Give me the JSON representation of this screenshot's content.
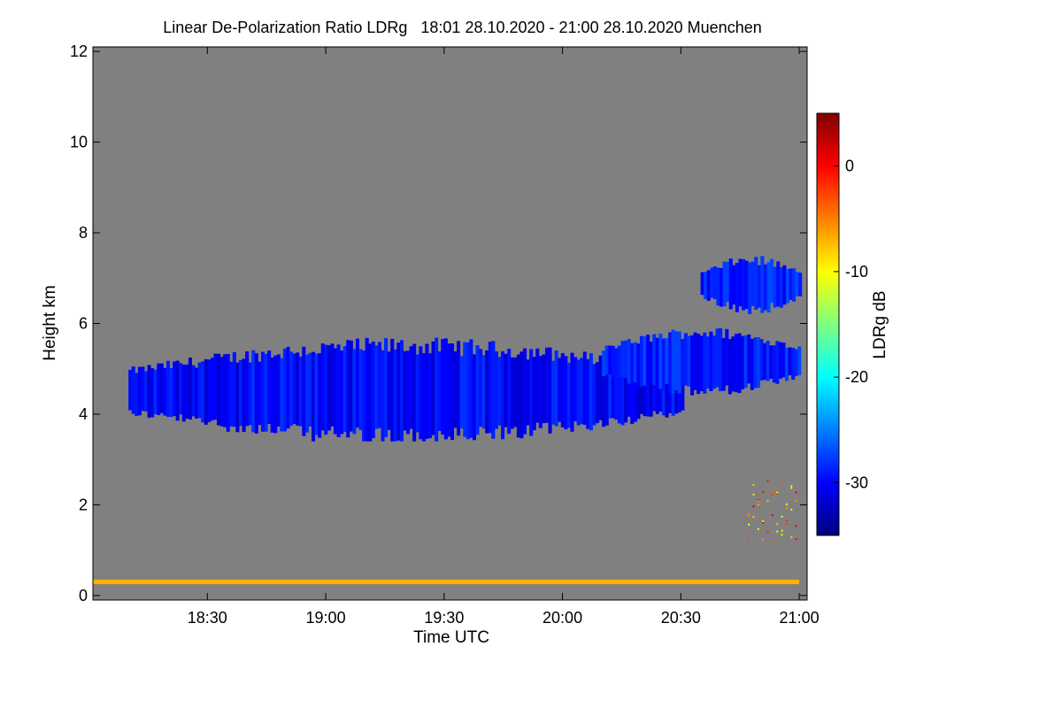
{
  "title": "Linear De-Polarization Ratio LDRg   18:01 28.10.2020 - 21:00 28.10.2020 Muenchen",
  "colors": {
    "background": "#ffffff",
    "plot_background": "#808080",
    "colormap": [
      "#00007f",
      "#0000ff",
      "#007fff",
      "#00ffff",
      "#7fff7f",
      "#ffff00",
      "#ff7f00",
      "#ff0000",
      "#7f0000"
    ]
  },
  "chart_data": {
    "type": "heatmap",
    "title": "Linear De-Polarization Ratio LDRg   18:01 28.10.2020 - 21:00 28.10.2020 Muenchen",
    "xlabel": "Time UTC",
    "ylabel": "Height km",
    "colorbar_label": "LDRg dB",
    "xlim": [
      "18:01",
      "21:02"
    ],
    "ylim": [
      -0.1,
      12.1
    ],
    "x_ticks": [
      "18:30",
      "19:00",
      "19:30",
      "20:00",
      "20:30",
      "21:00"
    ],
    "y_ticks": [
      "0",
      "2",
      "4",
      "6",
      "8",
      "10",
      "12"
    ],
    "colorbar_range": [
      -35,
      5
    ],
    "colorbar_ticks": [
      "0",
      "-10",
      "-20",
      "-30"
    ],
    "features": [
      {
        "name": "main cloud layer",
        "time_start": "18:10",
        "time_end": "20:30",
        "height_base_km": 3.5,
        "height_top_km": 5.5,
        "ldr_db": -30
      },
      {
        "name": "upper cloud",
        "time_start": "20:35",
        "time_end": "21:00",
        "height_base_km": 6.3,
        "height_top_km": 7.4,
        "ldr_db": -29
      },
      {
        "name": "mid cloud patches",
        "time_start": "20:10",
        "time_end": "21:00",
        "height_base_km": 4.5,
        "height_top_km": 5.8,
        "ldr_db": -29
      },
      {
        "name": "aerosol speckle",
        "time_start": "20:47",
        "time_end": "21:00",
        "height_base_km": 1.2,
        "height_top_km": 2.6,
        "ldr_db": -5
      },
      {
        "name": "near-ground line",
        "time_start": "18:01",
        "time_end": "21:00",
        "height_base_km": 0.25,
        "height_top_km": 0.35,
        "ldr_db": -7
      }
    ]
  }
}
